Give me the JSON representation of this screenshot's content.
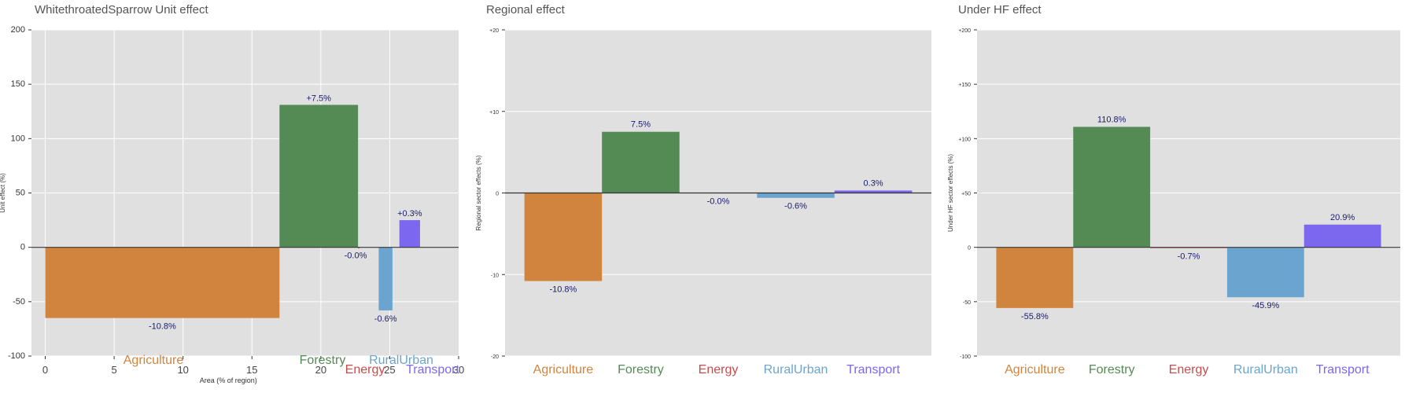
{
  "chart_data": [
    {
      "type": "bar",
      "title": "WhitethroatedSparrow Unit effect",
      "xlabel": "Area (% of region)",
      "ylabel": "Unit effect (%)",
      "xlim": [
        -1,
        30
      ],
      "ylim": [
        -100,
        200
      ],
      "yticks": [
        -100,
        -50,
        0,
        50,
        100,
        150,
        200
      ],
      "ytick_labels": [
        "-100",
        "-50",
        "0",
        "50",
        "100",
        "150",
        "200"
      ],
      "xticks": [
        0,
        5,
        10,
        15,
        20,
        25,
        30
      ],
      "xtick_labels": [
        "0",
        "5",
        "10",
        "15",
        "20",
        "25",
        "30"
      ],
      "grid": true,
      "bars": [
        {
          "category": "Agriculture",
          "x0": 0.0,
          "x1": 17.0,
          "value": -65,
          "label": "-10.8%",
          "color": "#D0843E"
        },
        {
          "category": "Forestry",
          "x0": 17.0,
          "x1": 22.7,
          "value": 131,
          "label": "+7.5%",
          "color": "#548A54"
        },
        {
          "category": "Energy",
          "x0": 22.7,
          "x1": 22.8,
          "value": -1,
          "label": "-0.0%",
          "color": "#C64B4B"
        },
        {
          "category": "RuralUrban",
          "x0": 24.2,
          "x1": 25.2,
          "value": -58,
          "label": "-0.6%",
          "color": "#6BA5CF"
        },
        {
          "category": "Transport",
          "x0": 25.7,
          "x1": 27.2,
          "value": 25,
          "label": "+0.3%",
          "color": "#7B68EE"
        }
      ],
      "category_labels": [
        "Agriculture",
        "Forestry",
        "Energy",
        "RuralUrban",
        "Transport"
      ]
    },
    {
      "type": "bar",
      "title": "Regional effect",
      "xlabel": "",
      "ylabel": "Regional sector effects (%)",
      "ylim": [
        -20,
        20
      ],
      "yticks": [
        -20,
        -10,
        0,
        10,
        20
      ],
      "ytick_labels": [
        "-20",
        "-10",
        "0",
        "+10",
        "+20"
      ],
      "grid": true,
      "categories": [
        "Agriculture",
        "Forestry",
        "Energy",
        "RuralUrban",
        "Transport"
      ],
      "values": [
        -10.8,
        7.5,
        -0.0,
        -0.6,
        0.3
      ],
      "value_labels": [
        "-10.8%",
        "7.5%",
        "-0.0%",
        "-0.6%",
        "0.3%"
      ],
      "colors": [
        "#D0843E",
        "#548A54",
        "#C64B4B",
        "#6BA5CF",
        "#7B68EE"
      ]
    },
    {
      "type": "bar",
      "title": "Under HF effect",
      "xlabel": "",
      "ylabel": "Under HF sector effects (%)",
      "ylim": [
        -100,
        200
      ],
      "yticks": [
        -100,
        -50,
        0,
        50,
        100,
        150,
        200
      ],
      "ytick_labels": [
        "-100",
        "-50",
        "0",
        "+50",
        "+100",
        "+150",
        "+200"
      ],
      "grid": true,
      "categories": [
        "Agriculture",
        "Forestry",
        "Energy",
        "RuralUrban",
        "Transport"
      ],
      "values": [
        -55.8,
        110.8,
        -0.7,
        -45.9,
        20.9
      ],
      "value_labels": [
        "-55.8%",
        "110.8%",
        "-0.7%",
        "-45.9%",
        "20.9%"
      ],
      "colors": [
        "#D0843E",
        "#548A54",
        "#C64B4B",
        "#6BA5CF",
        "#7B68EE"
      ]
    }
  ]
}
